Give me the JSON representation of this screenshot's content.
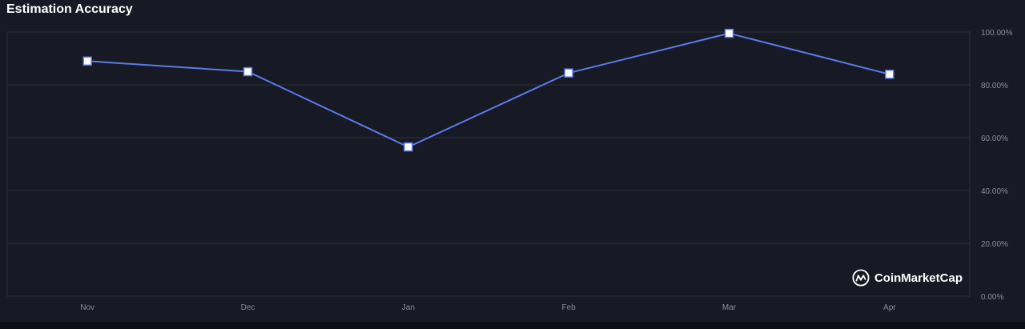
{
  "header": {
    "title": "Estimation Accuracy"
  },
  "brand": {
    "name": "CoinMarketCap",
    "icon": "coinmarketcap-logo-icon"
  },
  "colors": {
    "background": "#171924",
    "line": "#5b7be8",
    "marker_fill": "#ffffff",
    "grid": "#2c2f3d",
    "tick_text": "#8c8f9c"
  },
  "chart_data": {
    "type": "line",
    "title": "Estimation Accuracy",
    "categories": [
      "Nov",
      "Dec",
      "Jan",
      "Feb",
      "Mar",
      "Apr"
    ],
    "series": [
      {
        "values": [
          89,
          85,
          56.5,
          84.5,
          99.5,
          84
        ]
      }
    ],
    "ylim": [
      0,
      100
    ],
    "yticks": [
      "0.00%",
      "20.00%",
      "40.00%",
      "60.00%",
      "80.00%",
      "100.00%"
    ],
    "ytick_values": [
      0,
      20,
      40,
      60,
      80,
      100
    ],
    "y_axis_position": "right",
    "grid": true,
    "legend": "none",
    "marker": "square"
  }
}
